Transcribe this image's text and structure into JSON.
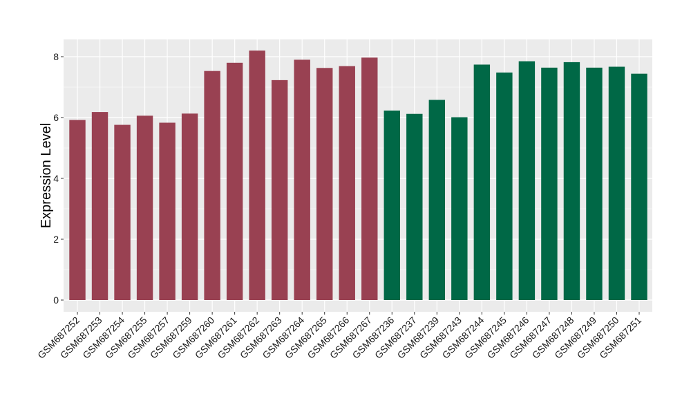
{
  "chart_data": {
    "type": "bar",
    "title": "",
    "xlabel": "",
    "ylabel": "Expression Level",
    "ylim": [
      0,
      8.2
    ],
    "yticks": [
      0,
      2,
      4,
      6,
      8
    ],
    "grid": true,
    "legend": "none",
    "categories": [
      "GSM687252",
      "GSM687253",
      "GSM687254",
      "GSM687255",
      "GSM687257",
      "GSM687259",
      "GSM687260",
      "GSM687261",
      "GSM687262",
      "GSM687263",
      "GSM687264",
      "GSM687265",
      "GSM687266",
      "GSM687267",
      "GSM687236",
      "GSM687237",
      "GSM687239",
      "GSM687243",
      "GSM687244",
      "GSM687245",
      "GSM687246",
      "GSM687247",
      "GSM687248",
      "GSM687249",
      "GSM687250",
      "GSM687251"
    ],
    "values": [
      5.92,
      6.18,
      5.76,
      6.06,
      5.83,
      6.13,
      7.53,
      7.8,
      8.2,
      7.23,
      7.9,
      7.63,
      7.69,
      7.97,
      6.23,
      6.12,
      6.58,
      6.01,
      7.74,
      7.48,
      7.85,
      7.64,
      7.82,
      7.64,
      7.67,
      7.44
    ],
    "groups": [
      0,
      0,
      0,
      0,
      0,
      0,
      0,
      0,
      0,
      0,
      0,
      0,
      0,
      0,
      1,
      1,
      1,
      1,
      1,
      1,
      1,
      1,
      1,
      1,
      1,
      1
    ],
    "group_colors": [
      "#994152",
      "#006846"
    ],
    "panel_background": "#ebebeb",
    "grid_color": "#ffffff"
  }
}
